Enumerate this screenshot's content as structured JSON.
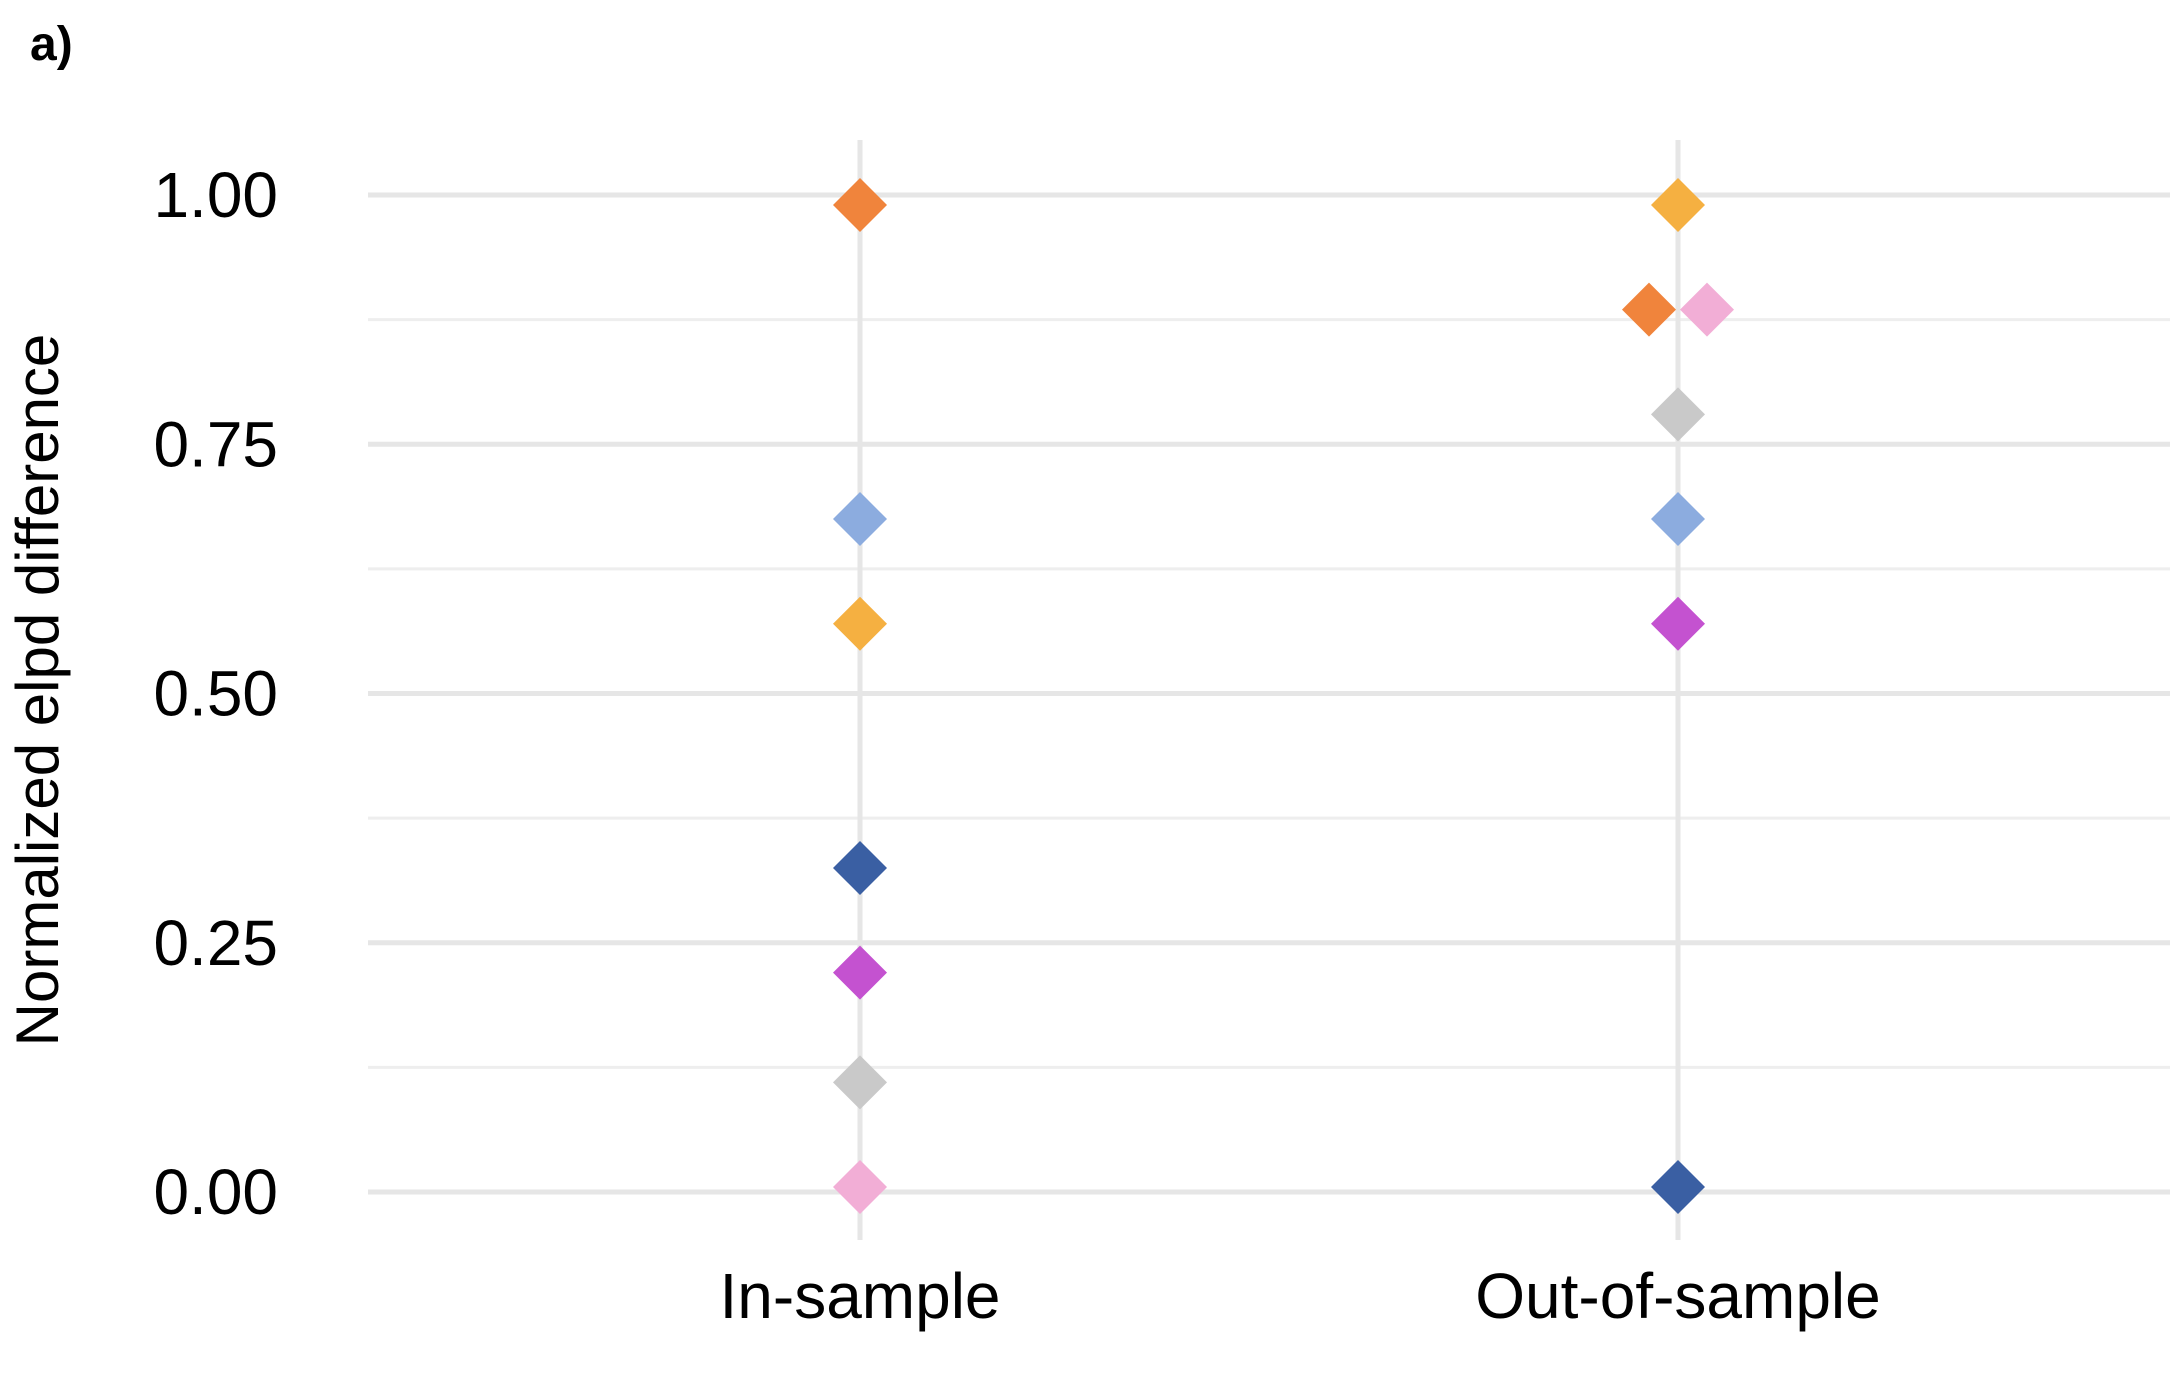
{
  "panel_label": "a)",
  "chart_data": {
    "type": "scatter",
    "title": "",
    "xlabel": "",
    "ylabel": "Normalized elpd difference",
    "categories": [
      "In-sample",
      "Out-of-sample"
    ],
    "ylim": [
      -0.04,
      1.05
    ],
    "yticks": [
      0.0,
      0.25,
      0.5,
      0.75,
      1.0
    ],
    "ytick_labels": [
      "0.00",
      "0.25",
      "0.50",
      "0.75",
      "1.00"
    ],
    "grid": true,
    "legend": "none",
    "series": [
      {
        "color": "#f0843c",
        "values": [
          0.99,
          0.885
        ]
      },
      {
        "color": "#f5b041",
        "values": [
          0.57,
          0.99
        ]
      },
      {
        "color": "#f2aed6",
        "values": [
          0.005,
          0.885
        ]
      },
      {
        "color": "#c9c9c9",
        "values": [
          0.11,
          0.78
        ]
      },
      {
        "color": "#8cacdf",
        "values": [
          0.675,
          0.675
        ]
      },
      {
        "color": "#c452d0",
        "values": [
          0.22,
          0.57
        ]
      },
      {
        "color": "#3a5fa3",
        "values": [
          0.325,
          0.005
        ]
      }
    ],
    "dodge": [
      {
        "category": 1,
        "value": 0.885,
        "colors": [
          "#f0843c",
          "#f2aed6"
        ]
      }
    ]
  }
}
